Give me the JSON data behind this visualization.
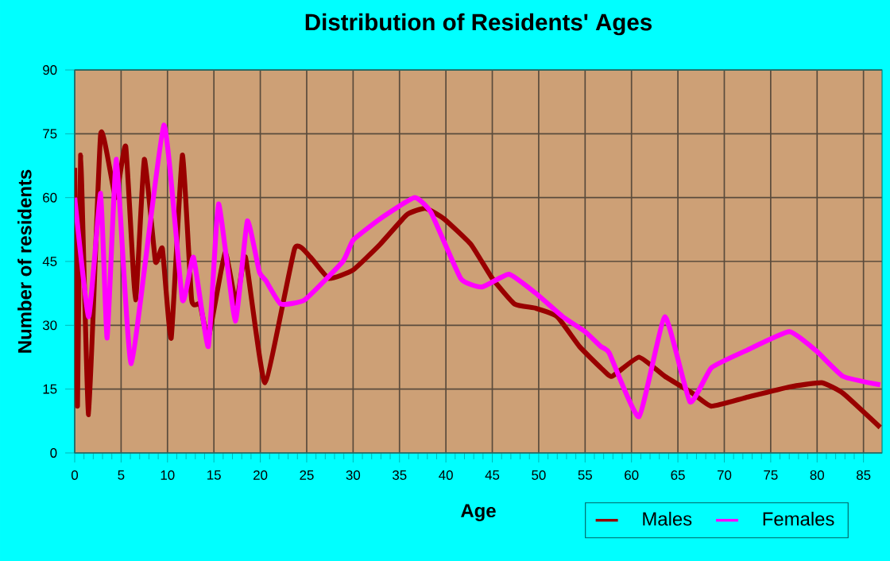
{
  "chart_data": {
    "type": "line",
    "title": "Distribution of Residents' Ages",
    "xlabel": "Age",
    "ylabel": "Number of residents",
    "xlim": [
      0,
      87
    ],
    "ylim": [
      0,
      90
    ],
    "xticks": [
      0,
      5,
      10,
      15,
      20,
      25,
      30,
      35,
      40,
      45,
      50,
      55,
      60,
      65,
      70,
      75,
      80,
      85
    ],
    "yticks": [
      0,
      15,
      30,
      45,
      60,
      75,
      90
    ],
    "grid": true,
    "legend": "bottom right",
    "marker": "none",
    "line_style": "solid",
    "series": [
      {
        "name": "Males",
        "color": "#990000",
        "x": [
          0,
          0.3,
          0.64,
          1.5,
          2.8,
          4.4,
          5.5,
          6.55,
          7.5,
          8.7,
          9.45,
          10.4,
          11.6,
          12.6,
          13.5,
          14.4,
          16.2,
          17.4,
          18.4,
          20.5,
          23.7,
          25.4,
          27.4,
          30,
          32.9,
          35.8,
          37.8,
          39.8,
          42.7,
          45,
          47.4,
          49.7,
          52,
          54.4,
          56.7,
          57.9,
          60.8,
          63.6,
          66.6,
          68.6,
          72.3,
          77,
          80.5,
          82.8,
          86.8
        ],
        "values": [
          67,
          11,
          70,
          9,
          75,
          60,
          72,
          36,
          69,
          45,
          48,
          27,
          70,
          36,
          35,
          27,
          47,
          35,
          46,
          16.5,
          48,
          46,
          41,
          43,
          49,
          56,
          57.5,
          55,
          49,
          41,
          35,
          34,
          32,
          25,
          20,
          18,
          22.5,
          18,
          14,
          11,
          13,
          15.5,
          16.5,
          14,
          6
        ]
      },
      {
        "name": "Females",
        "color": "#ff00ff",
        "x": [
          0,
          1.5,
          2.8,
          3.5,
          4.5,
          6.1,
          9.6,
          11.6,
          12.8,
          14.4,
          15.5,
          17.3,
          18.6,
          19.9,
          20.6,
          22.2,
          24.8,
          28.9,
          30,
          32.9,
          36.6,
          38.4,
          41.6,
          43.9,
          46.8,
          49.7,
          52.6,
          55,
          56.7,
          57.6,
          60.8,
          63.6,
          66.3,
          68.6,
          72.3,
          77,
          79.9,
          82.8,
          86.8
        ],
        "values": [
          60,
          32,
          61,
          27,
          69,
          21,
          77,
          36,
          46,
          25,
          58.5,
          31,
          54.5,
          42.5,
          40.5,
          35,
          36,
          45,
          50,
          55,
          60,
          56.5,
          41,
          39,
          42,
          37.5,
          32,
          28.5,
          25,
          23.5,
          8.5,
          32,
          12,
          20,
          24,
          28.5,
          24,
          18,
          16
        ]
      }
    ]
  }
}
